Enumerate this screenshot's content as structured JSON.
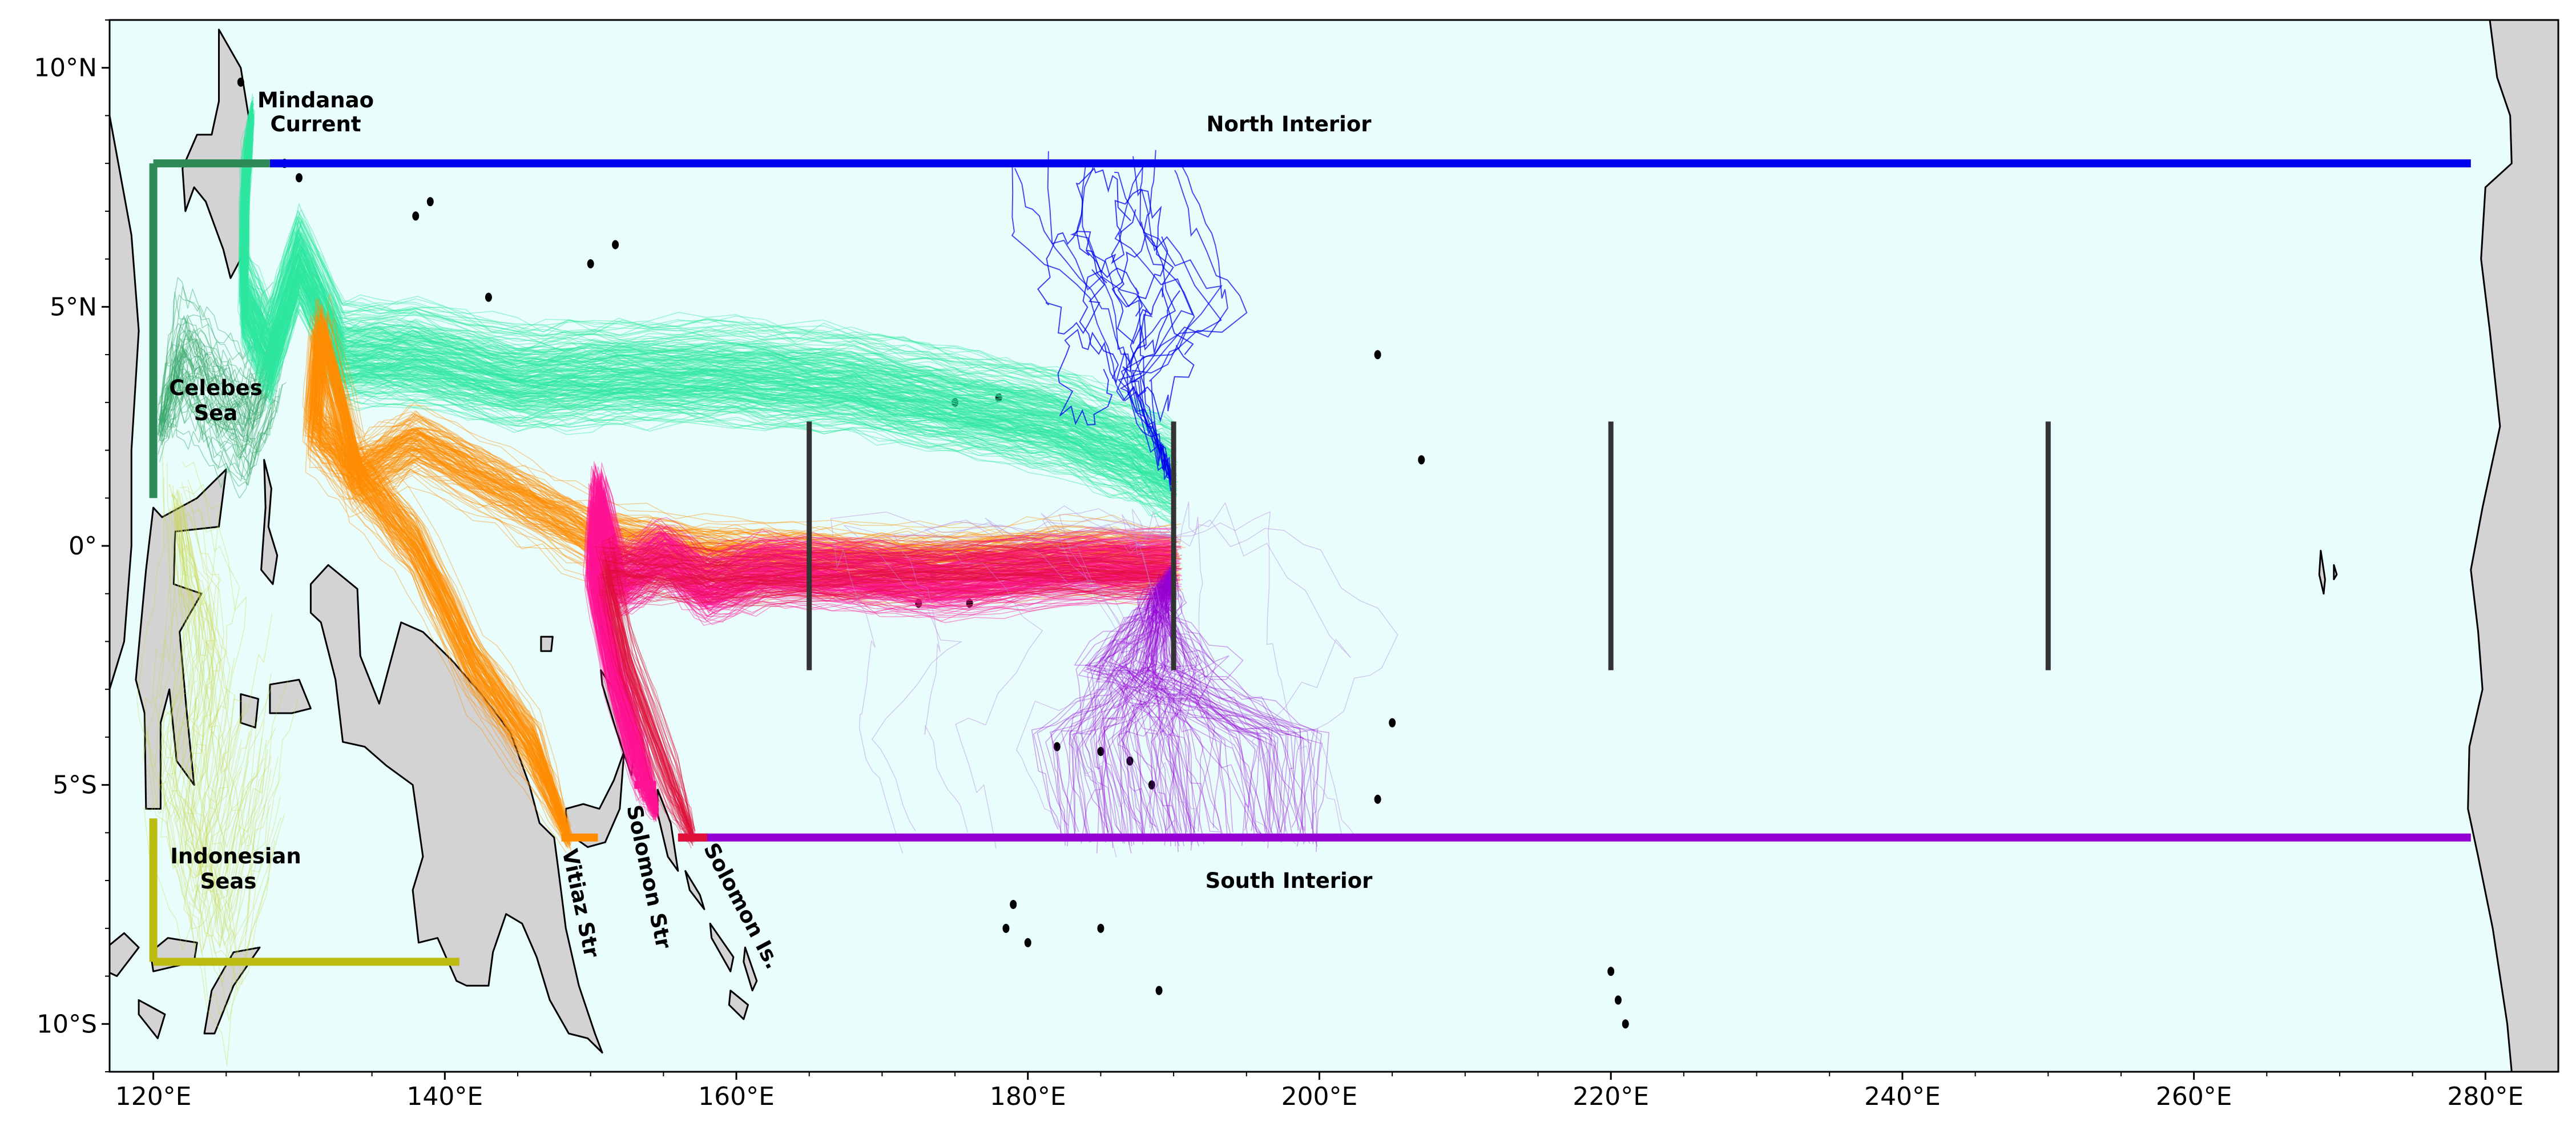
{
  "map": {
    "x_axis": {
      "range_deg_e": [
        117,
        285
      ],
      "ticks": [
        {
          "value": 120,
          "label": "120°E"
        },
        {
          "value": 140,
          "label": "140°E"
        },
        {
          "value": 160,
          "label": "160°E"
        },
        {
          "value": 180,
          "label": "180°E"
        },
        {
          "value": 200,
          "label": "200°E"
        },
        {
          "value": 220,
          "label": "220°E"
        },
        {
          "value": 240,
          "label": "240°E"
        },
        {
          "value": 260,
          "label": "260°E"
        },
        {
          "value": 280,
          "label": "280°E"
        }
      ]
    },
    "y_axis": {
      "range_deg_n": [
        -11,
        11
      ],
      "ticks": [
        {
          "value": 10,
          "label": "10°N"
        },
        {
          "value": 5,
          "label": "5°N"
        },
        {
          "value": 0,
          "label": "0°"
        },
        {
          "value": -5,
          "label": "5°S"
        },
        {
          "value": -10,
          "label": "10°S"
        }
      ]
    },
    "colors": {
      "ocean": "#e8fdfc",
      "land": "#d3d3d3",
      "mindanao": "#2ee8a0",
      "north_interior": "#0000ee",
      "south_interior": "#9400d3",
      "celebes": "#2e8b57",
      "indonesian": "#bcbc10",
      "vitiaz": "#ff8c00",
      "solomon_str": "#ff1493",
      "solomon_is": "#e0103a",
      "meridional_bars": "#333333"
    },
    "labels": {
      "mindanao_1": "Mindanao",
      "mindanao_2": "Current",
      "north_interior": "North Interior",
      "celebes_1": "Celebes",
      "celebes_2": "Sea",
      "indonesian_1": "Indonesian",
      "indonesian_2": "Seas",
      "south_interior": "South Interior",
      "vitiaz": "Vitiaz Str",
      "solomon_str": "Solomon Str",
      "solomon_is": "Solomon Is."
    },
    "sections": [
      {
        "name": "north-interior",
        "color_key": "north_interior",
        "from": [
          128,
          8
        ],
        "to": [
          279,
          8
        ]
      },
      {
        "name": "south-interior",
        "color_key": "south_interior",
        "from": [
          156,
          -6.1
        ],
        "to": [
          279,
          -6.1
        ]
      },
      {
        "name": "celebes-top",
        "color_key": "celebes",
        "from": [
          120,
          8
        ],
        "to": [
          128,
          8
        ]
      },
      {
        "name": "celebes-left",
        "color_key": "celebes",
        "from": [
          120,
          8
        ],
        "to": [
          120,
          1
        ]
      },
      {
        "name": "indonesian-left",
        "color_key": "indonesian",
        "from": [
          120,
          -5.7
        ],
        "to": [
          120,
          -8.7
        ]
      },
      {
        "name": "indonesian-bottom",
        "color_key": "indonesian",
        "from": [
          120,
          -8.7
        ],
        "to": [
          141,
          -8.7
        ]
      },
      {
        "name": "vitiaz-section",
        "color_key": "vitiaz",
        "from": [
          148,
          -6.1
        ],
        "to": [
          150.5,
          -6.1
        ]
      },
      {
        "name": "solomon-str-section",
        "color_key": "solomon_str",
        "from": [
          153,
          -5
        ],
        "to": [
          154.5,
          -5
        ]
      },
      {
        "name": "solomon-is-section",
        "color_key": "solomon_is",
        "from": [
          156,
          -6.1
        ],
        "to": [
          158,
          -6.1
        ]
      }
    ],
    "meridional_bars": [
      165,
      190,
      220,
      250
    ],
    "meridional_bar_lat_range": [
      -2.6,
      2.6
    ]
  }
}
